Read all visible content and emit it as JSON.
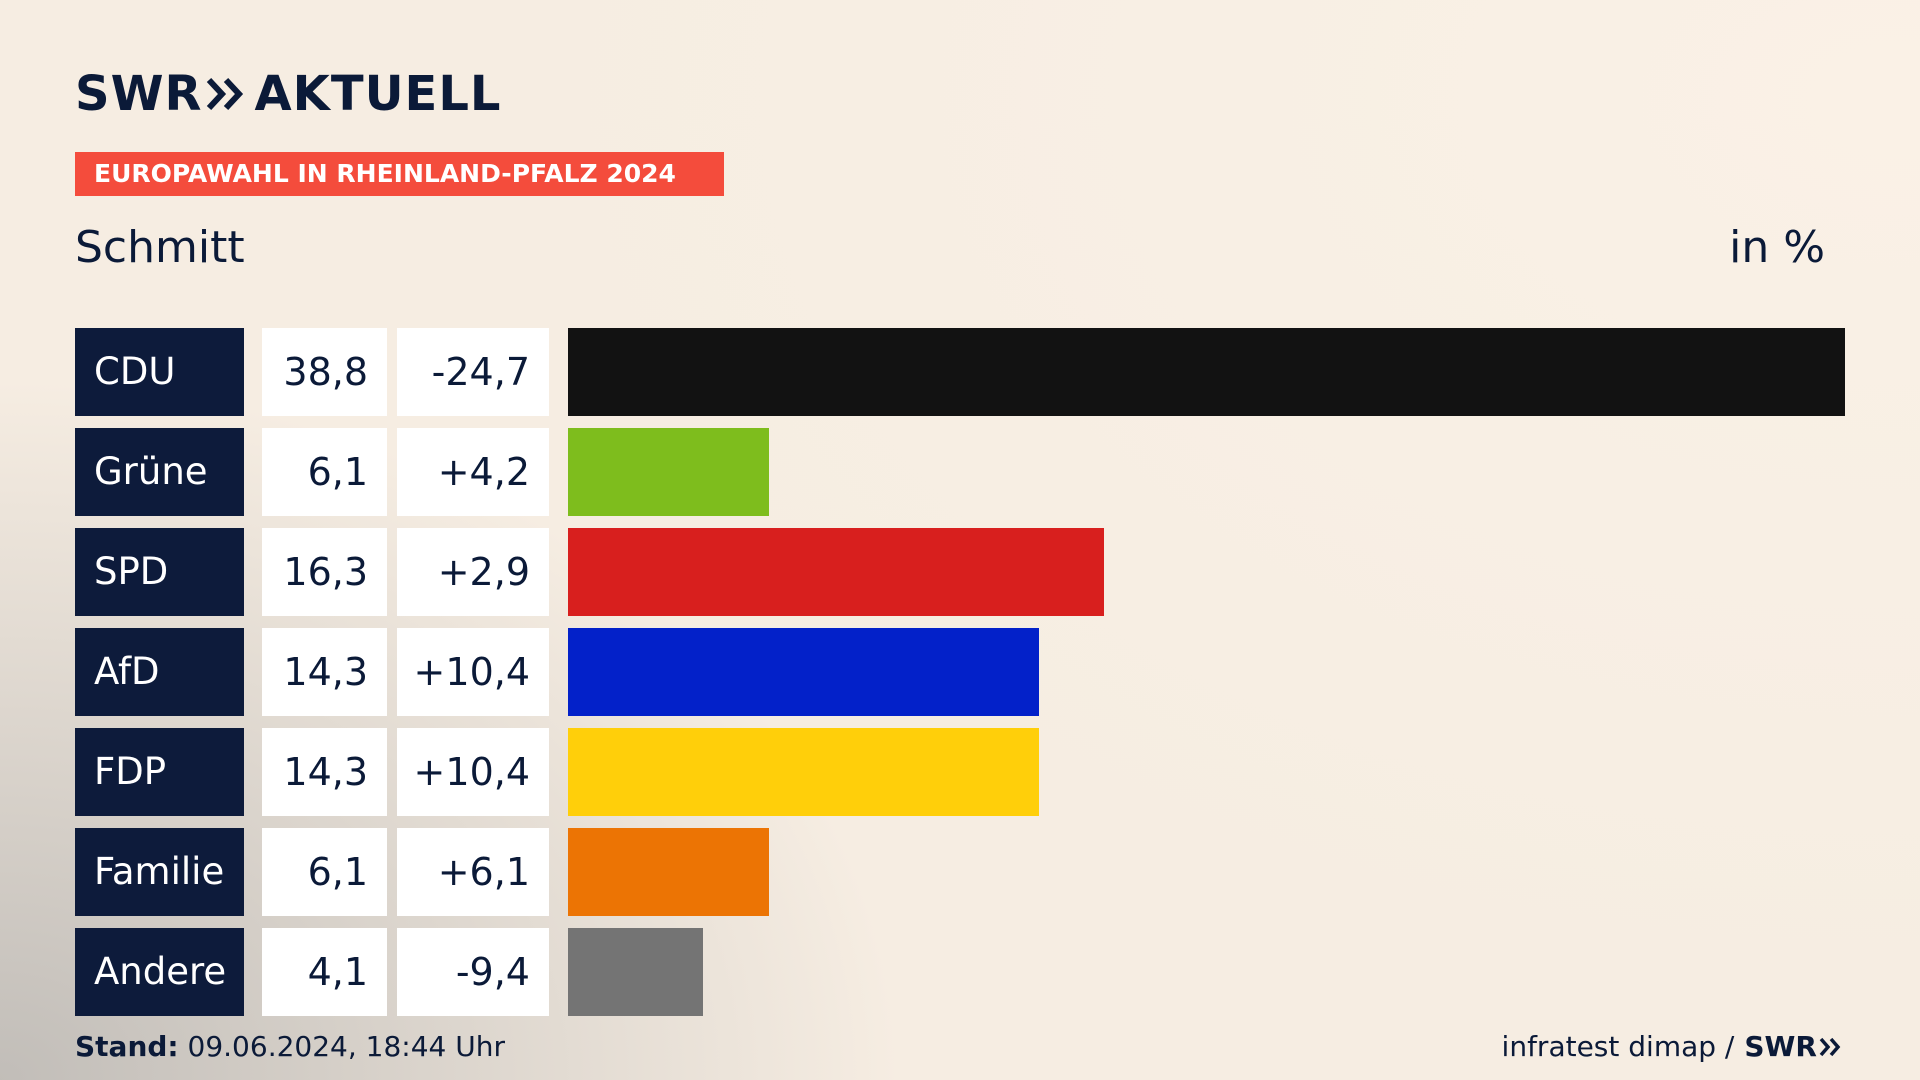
{
  "header": {
    "logo_left": "SWR",
    "logo_right": "AKTUELL",
    "badge": "EUROPAWAHL IN RHEINLAND-PFALZ 2024"
  },
  "chart_data": {
    "type": "bar",
    "orientation": "horizontal",
    "title": "Schmitt",
    "unit": "in %",
    "xlim": [
      0,
      38.8
    ],
    "rows": [
      {
        "party": "CDU",
        "value": 38.8,
        "value_label": "38,8",
        "diff_label": "-24,7",
        "color": "#121212"
      },
      {
        "party": "Grüne",
        "value": 6.1,
        "value_label": "6,1",
        "diff_label": "+4,2",
        "color": "#7ebd1d"
      },
      {
        "party": "SPD",
        "value": 16.3,
        "value_label": "16,3",
        "diff_label": "+2,9",
        "color": "#d81f1e"
      },
      {
        "party": "AfD",
        "value": 14.3,
        "value_label": "14,3",
        "diff_label": "+10,4",
        "color": "#0321c9"
      },
      {
        "party": "FDP",
        "value": 14.3,
        "value_label": "14,3",
        "diff_label": "+10,4",
        "color": "#ffcf0a"
      },
      {
        "party": "Familie",
        "value": 6.1,
        "value_label": "6,1",
        "diff_label": "+6,1",
        "color": "#ec7404"
      },
      {
        "party": "Andere",
        "value": 4.1,
        "value_label": "4,1",
        "diff_label": "-9,4",
        "color": "#747474"
      }
    ]
  },
  "footer": {
    "stand_label": "Stand:",
    "stand_value": "09.06.2024, 18:44 Uhr",
    "source": "infratest dimap /",
    "source_logo": "SWR"
  }
}
